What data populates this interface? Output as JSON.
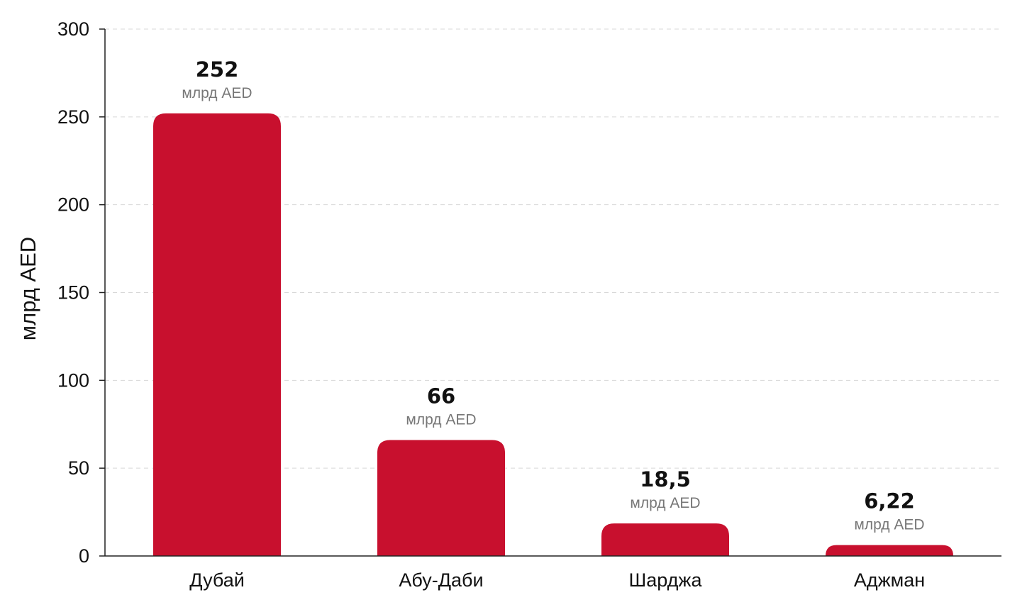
{
  "chart_data": {
    "type": "bar",
    "title": "",
    "xlabel": "",
    "ylabel": "млрд AED",
    "ylim": [
      0,
      300
    ],
    "yticks": [
      0,
      50,
      100,
      150,
      200,
      250,
      300
    ],
    "grid": true,
    "legend": "none",
    "categories": [
      "Дубай",
      "Абу-Даби",
      "Шарджа",
      "Аджман"
    ],
    "values": [
      252,
      66,
      18.5,
      6.22
    ],
    "value_labels": [
      "252",
      "66",
      "18,5",
      "6,22"
    ],
    "unit_label": "млрд AED",
    "bar_color": "#c8102e"
  }
}
